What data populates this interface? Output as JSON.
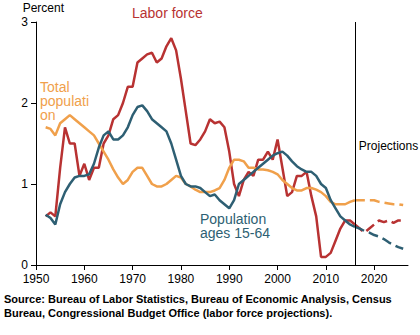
{
  "chart_data": {
    "type": "line",
    "y_label": "Percent",
    "source": "Source: Bureau of Labor Statistics, Bureau of Economic Analysis, Census Bureau, Congressional Budget Office (labor force projections).",
    "projection": {
      "x": 2016,
      "label": "Projections",
      "line_style": "dashed"
    },
    "x": [
      1952,
      1953,
      1954,
      1955,
      1956,
      1957,
      1958,
      1959,
      1960,
      1961,
      1962,
      1963,
      1964,
      1965,
      1966,
      1967,
      1968,
      1969,
      1970,
      1971,
      1972,
      1973,
      1974,
      1975,
      1976,
      1977,
      1978,
      1979,
      1980,
      1981,
      1982,
      1983,
      1984,
      1985,
      1986,
      1987,
      1988,
      1989,
      1990,
      1991,
      1992,
      1993,
      1994,
      1995,
      1996,
      1997,
      1998,
      1999,
      2000,
      2001,
      2002,
      2003,
      2004,
      2005,
      2006,
      2007,
      2008,
      2009,
      2010,
      2011,
      2012,
      2013,
      2014,
      2015,
      2016,
      2017,
      2018,
      2019,
      2020,
      2021,
      2022,
      2023,
      2024,
      2025,
      2026
    ],
    "series": [
      {
        "name": "Labor force",
        "color": "#b83232",
        "values": [
          0.6,
          0.65,
          0.6,
          1.2,
          1.7,
          1.5,
          1.5,
          1.1,
          1.25,
          1.05,
          1.2,
          1.2,
          1.5,
          1.6,
          1.8,
          1.85,
          2.0,
          2.2,
          2.2,
          2.5,
          2.55,
          2.6,
          2.62,
          2.5,
          2.55,
          2.7,
          2.8,
          2.65,
          2.3,
          1.9,
          1.5,
          1.48,
          1.55,
          1.65,
          1.8,
          1.75,
          1.77,
          1.7,
          1.4,
          1.0,
          0.85,
          1.05,
          1.15,
          1.1,
          1.3,
          1.3,
          1.4,
          1.3,
          1.55,
          1.2,
          0.85,
          0.9,
          1.1,
          1.1,
          1.15,
          0.85,
          0.6,
          0.1,
          0.1,
          0.15,
          0.3,
          0.45,
          0.55,
          0.55,
          0.5,
          0.45,
          0.4,
          0.45,
          0.5,
          0.55,
          0.53,
          0.55,
          0.52,
          0.55,
          0.55
        ]
      },
      {
        "name": "Total population",
        "color": "#f0a04b",
        "values": [
          1.7,
          1.68,
          1.6,
          1.75,
          1.8,
          1.85,
          1.8,
          1.75,
          1.7,
          1.65,
          1.6,
          1.5,
          1.4,
          1.3,
          1.18,
          1.08,
          1.0,
          1.05,
          1.15,
          1.2,
          1.2,
          1.1,
          1.0,
          0.97,
          0.97,
          1.0,
          1.05,
          1.1,
          1.08,
          1.0,
          0.97,
          0.93,
          0.9,
          0.9,
          0.9,
          0.92,
          0.95,
          1.05,
          1.2,
          1.3,
          1.3,
          1.28,
          1.2,
          1.2,
          1.18,
          1.18,
          1.17,
          1.15,
          1.12,
          1.05,
          1.0,
          0.95,
          0.92,
          0.92,
          0.95,
          0.95,
          0.93,
          0.9,
          0.85,
          0.78,
          0.75,
          0.75,
          0.75,
          0.78,
          0.8,
          0.8,
          0.8,
          0.8,
          0.8,
          0.78,
          0.77,
          0.76,
          0.75,
          0.75,
          0.74
        ]
      },
      {
        "name": "Population ages 15-64",
        "color": "#2e5f73",
        "values": [
          0.62,
          0.58,
          0.5,
          0.75,
          0.9,
          1.0,
          1.08,
          1.1,
          1.1,
          1.12,
          1.25,
          1.45,
          1.6,
          1.65,
          1.55,
          1.55,
          1.6,
          1.7,
          1.85,
          1.95,
          1.97,
          1.9,
          1.8,
          1.75,
          1.7,
          1.65,
          1.5,
          1.3,
          1.1,
          1.0,
          0.97,
          0.97,
          0.95,
          0.9,
          0.85,
          0.87,
          0.8,
          0.75,
          0.7,
          0.8,
          1.0,
          1.05,
          1.1,
          1.15,
          1.2,
          1.25,
          1.3,
          1.35,
          1.38,
          1.4,
          1.35,
          1.28,
          1.22,
          1.18,
          1.15,
          1.15,
          1.1,
          1.0,
          0.95,
          0.8,
          0.7,
          0.6,
          0.55,
          0.5,
          0.47,
          0.45,
          0.42,
          0.4,
          0.37,
          0.35,
          0.32,
          0.28,
          0.25,
          0.22,
          0.2
        ]
      }
    ],
    "xlim": [
      1950,
      2027
    ],
    "xticks": [
      1950,
      1960,
      1970,
      1980,
      1990,
      2000,
      2010,
      2020
    ],
    "ylim": [
      0,
      3
    ],
    "yticks": [
      0,
      1,
      2,
      3
    ],
    "grid": false
  }
}
